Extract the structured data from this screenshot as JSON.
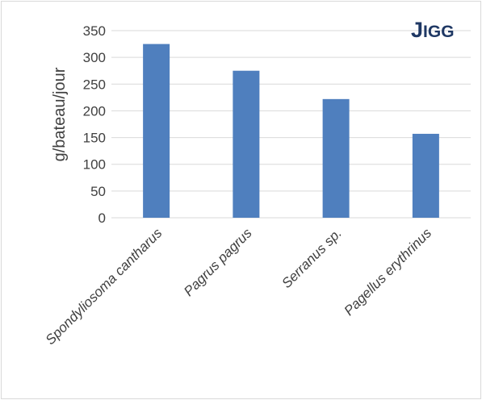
{
  "chart_data": {
    "type": "bar",
    "title": "",
    "badge": {
      "first": "J",
      "rest": "IGG"
    },
    "xlabel": "",
    "ylabel": "g/bateau/jour",
    "ylim": [
      0,
      350
    ],
    "yticks": [
      0,
      50,
      100,
      150,
      200,
      250,
      300,
      350
    ],
    "ytick_labels": [
      "0",
      "50",
      "100",
      "150",
      "200",
      "250",
      "300",
      "350"
    ],
    "categories": [
      "Spondyliosoma cantharus",
      "Pagrus pagrus",
      "Serranus sp.",
      "Pagellus erythrinus"
    ],
    "values": [
      325,
      275,
      222,
      157
    ],
    "grid": true,
    "legend": "none",
    "colors": {
      "bar": "#4f7fbe",
      "grid": "#d9d9d9",
      "text": "#404040",
      "badge": "#1f3864"
    }
  }
}
